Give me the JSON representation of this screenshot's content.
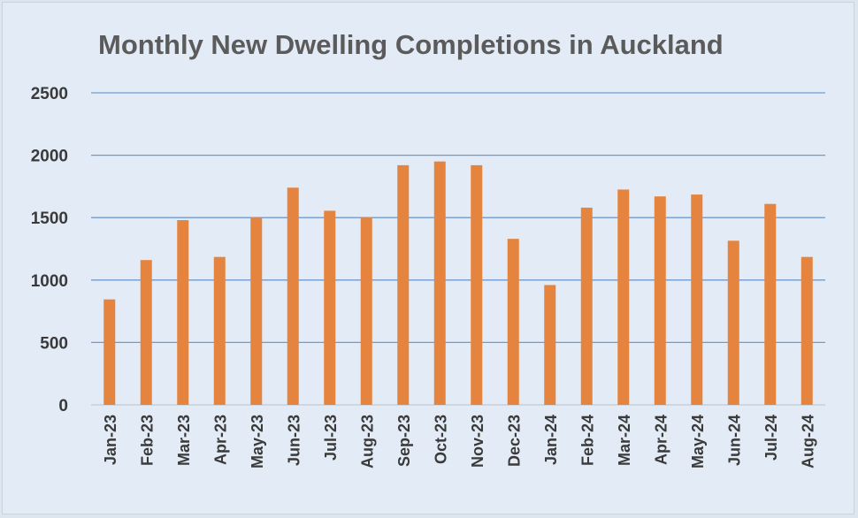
{
  "chart_data": {
    "type": "bar",
    "title": "Monthly New Dwelling Completions in Auckland",
    "xlabel": "",
    "ylabel": "",
    "categories": [
      "Jan-23",
      "Feb-23",
      "Mar-23",
      "Apr-23",
      "May-23",
      "Jun-23",
      "Jul-23",
      "Aug-23",
      "Sep-23",
      "Oct-23",
      "Nov-23",
      "Dec-23",
      "Jan-24",
      "Feb-24",
      "Mar-24",
      "Apr-24",
      "May-24",
      "Jun-24",
      "Jul-24",
      "Aug-24"
    ],
    "values": [
      845,
      1160,
      1480,
      1185,
      1500,
      1740,
      1555,
      1500,
      1920,
      1950,
      1920,
      1330,
      960,
      1580,
      1725,
      1670,
      1685,
      1315,
      1610,
      1185
    ],
    "ylim": [
      0,
      2500
    ],
    "yticks": [
      0,
      500,
      1000,
      1500,
      2000,
      2500
    ],
    "grid": true,
    "bar_color": "#e5843f",
    "grid_color": "#6e9bd2",
    "background_color": "#e3ecf6"
  }
}
